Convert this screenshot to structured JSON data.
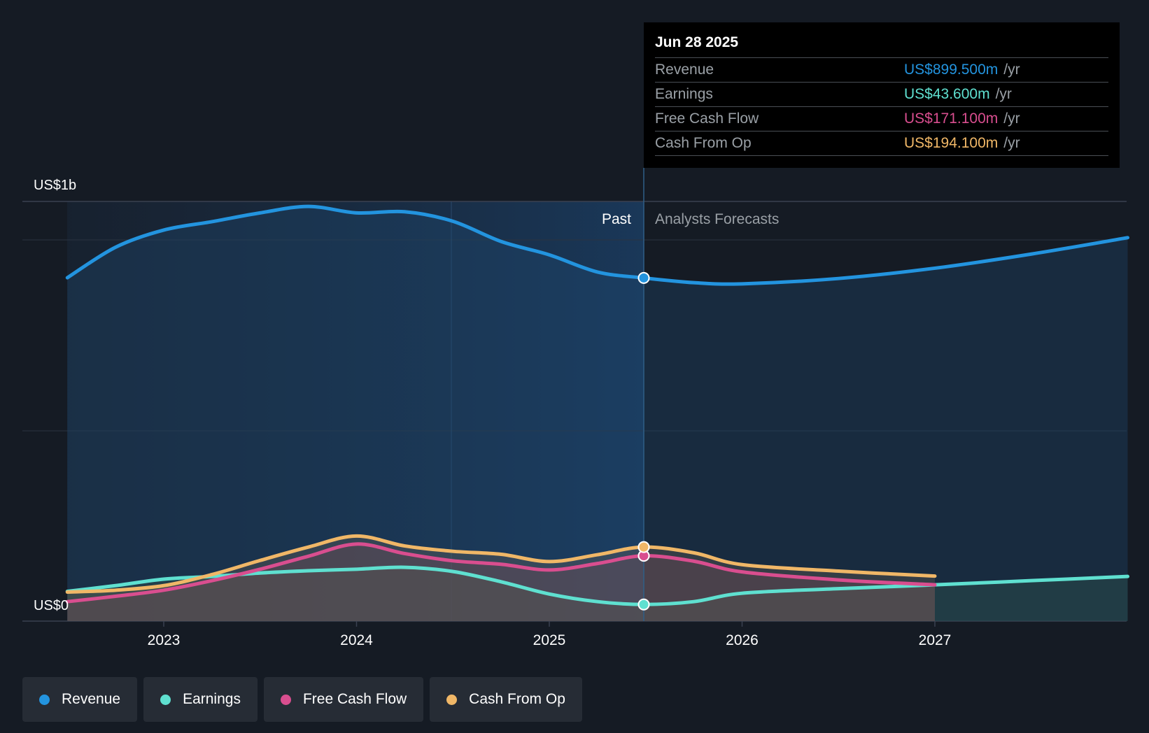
{
  "chart_data": {
    "type": "line",
    "y_axis": {
      "top_label": "US$1b",
      "bottom_label": "US$0",
      "ylim": [
        0,
        1100
      ]
    },
    "x_axis": {
      "ticks": [
        "2023",
        "2024",
        "2025",
        "2026",
        "2027"
      ]
    },
    "regions": {
      "past_label": "Past",
      "forecast_label": "Analysts Forecasts"
    },
    "divider_year": 2025.49,
    "series": [
      {
        "name": "Revenue",
        "color": "#2394df",
        "points": [
          [
            2022.5,
            900
          ],
          [
            2022.75,
            980
          ],
          [
            2023,
            1025
          ],
          [
            2023.25,
            1047
          ],
          [
            2023.5,
            1070
          ],
          [
            2023.75,
            1087
          ],
          [
            2024,
            1070
          ],
          [
            2024.25,
            1073
          ],
          [
            2024.5,
            1048
          ],
          [
            2024.75,
            995
          ],
          [
            2025,
            960
          ],
          [
            2025.25,
            915
          ],
          [
            2025.49,
            899.5
          ],
          [
            2025.75,
            887
          ],
          [
            2026,
            884
          ],
          [
            2026.5,
            898
          ],
          [
            2027,
            925
          ],
          [
            2027.5,
            962
          ],
          [
            2028,
            1005
          ]
        ]
      },
      {
        "name": "Earnings",
        "color": "#5fe0d0",
        "points": [
          [
            2022.5,
            78
          ],
          [
            2022.75,
            93
          ],
          [
            2023,
            110
          ],
          [
            2023.25,
            117
          ],
          [
            2023.5,
            126
          ],
          [
            2023.75,
            132
          ],
          [
            2024,
            136
          ],
          [
            2024.25,
            141
          ],
          [
            2024.5,
            130
          ],
          [
            2024.75,
            103
          ],
          [
            2025,
            71
          ],
          [
            2025.25,
            51
          ],
          [
            2025.49,
            43.6
          ],
          [
            2025.75,
            51
          ],
          [
            2026,
            73
          ],
          [
            2026.5,
            85
          ],
          [
            2027,
            95
          ],
          [
            2027.5,
            106
          ],
          [
            2028,
            117
          ]
        ]
      },
      {
        "name": "Free Cash Flow",
        "color": "#d94e8f",
        "points": [
          [
            2022.5,
            51
          ],
          [
            2022.75,
            65
          ],
          [
            2023,
            81
          ],
          [
            2023.25,
            106
          ],
          [
            2023.5,
            136
          ],
          [
            2023.75,
            170
          ],
          [
            2024,
            202
          ],
          [
            2024.25,
            177
          ],
          [
            2024.5,
            158
          ],
          [
            2024.75,
            149
          ],
          [
            2025,
            134
          ],
          [
            2025.25,
            151
          ],
          [
            2025.49,
            171.1
          ],
          [
            2025.75,
            157
          ],
          [
            2026,
            129
          ],
          [
            2026.5,
            108
          ],
          [
            2027,
            95
          ]
        ]
      },
      {
        "name": "Cash From Op",
        "color": "#f0b767",
        "points": [
          [
            2022.5,
            76
          ],
          [
            2022.75,
            81
          ],
          [
            2023,
            93
          ],
          [
            2023.25,
            122
          ],
          [
            2023.5,
            159
          ],
          [
            2023.75,
            194
          ],
          [
            2024,
            223
          ],
          [
            2024.25,
            197
          ],
          [
            2024.5,
            183
          ],
          [
            2024.75,
            175
          ],
          [
            2025,
            156
          ],
          [
            2025.25,
            174
          ],
          [
            2025.49,
            194.1
          ],
          [
            2025.75,
            179
          ],
          [
            2026,
            148
          ],
          [
            2026.5,
            131
          ],
          [
            2027,
            118
          ]
        ]
      }
    ]
  },
  "tooltip": {
    "date": "Jun 28 2025",
    "rows": [
      {
        "label": "Revenue",
        "value": "US$899.500m",
        "unit": "/yr",
        "color": "#2394df"
      },
      {
        "label": "Earnings",
        "value": "US$43.600m",
        "unit": "/yr",
        "color": "#5fe0d0"
      },
      {
        "label": "Free Cash Flow",
        "value": "US$171.100m",
        "unit": "/yr",
        "color": "#d94e8f"
      },
      {
        "label": "Cash From Op",
        "value": "US$194.100m",
        "unit": "/yr",
        "color": "#f0b767"
      }
    ]
  },
  "legend": [
    {
      "label": "Revenue",
      "color": "#2394df"
    },
    {
      "label": "Earnings",
      "color": "#5fe0d0"
    },
    {
      "label": "Free Cash Flow",
      "color": "#d94e8f"
    },
    {
      "label": "Cash From Op",
      "color": "#f0b767"
    }
  ]
}
